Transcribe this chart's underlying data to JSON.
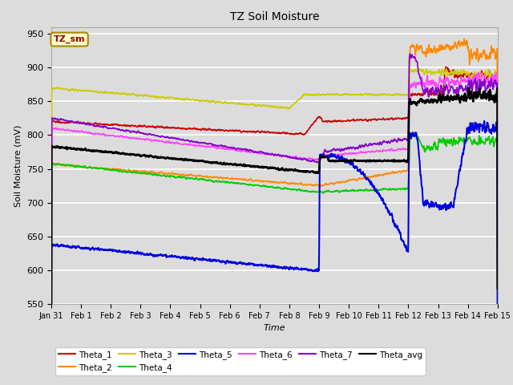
{
  "title": "TZ Soil Moisture",
  "xlabel": "Time",
  "ylabel": "Soil Moisture (mV)",
  "ylim": [
    550,
    960
  ],
  "xlim": [
    0,
    15
  ],
  "background_color": "#dcdcdc",
  "plot_bg_color": "#dcdcdc",
  "label_box_text": "TZ_sm",
  "label_box_color": "#ffffcc",
  "label_box_text_color": "#990000",
  "xtick_labels": [
    "Jan 31",
    "Feb 1",
    "Feb 2",
    "Feb 3",
    "Feb 4",
    "Feb 5",
    "Feb 6",
    "Feb 7",
    "Feb 8",
    "Feb 9",
    "Feb 10",
    "Feb 11",
    "Feb 12",
    "Feb 13",
    "Feb 14",
    "Feb 15"
  ],
  "ytick_values": [
    550,
    600,
    650,
    700,
    750,
    800,
    850,
    900,
    950
  ],
  "series": {
    "Theta_1": {
      "color": "#cc0000",
      "lw": 1.2
    },
    "Theta_2": {
      "color": "#ff8800",
      "lw": 1.2
    },
    "Theta_3": {
      "color": "#cccc00",
      "lw": 1.2
    },
    "Theta_4": {
      "color": "#00cc00",
      "lw": 1.2
    },
    "Theta_5": {
      "color": "#0000dd",
      "lw": 1.5
    },
    "Theta_6": {
      "color": "#ff44ff",
      "lw": 1.2
    },
    "Theta_7": {
      "color": "#8800cc",
      "lw": 1.2
    },
    "Theta_avg": {
      "color": "#000000",
      "lw": 1.8
    }
  }
}
